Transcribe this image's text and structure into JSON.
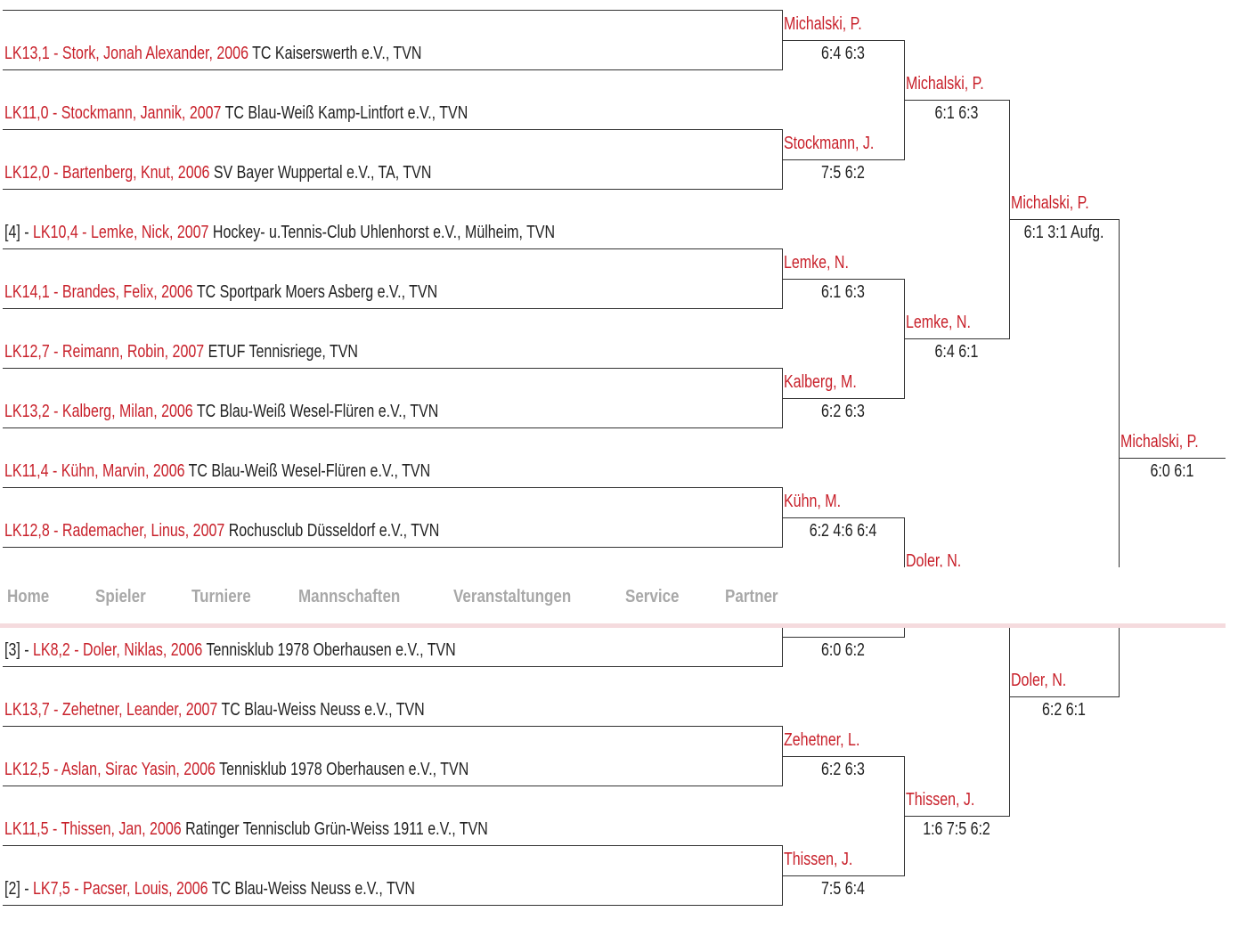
{
  "players": [
    null,
    {
      "name": "LK13,1 - Stork, Jonah Alexander, 2006",
      "club": "TC Kaiserswerth e.V., TVN"
    },
    {
      "name": "LK11,0 - Stockmann, Jannik, 2007",
      "club": "TC Blau-Weiß Kamp-Lintfort e.V., TVN"
    },
    {
      "name": "LK12,0 - Bartenberg, Knut, 2006",
      "club": "SV Bayer Wuppertal e.V., TA, TVN"
    },
    {
      "seed": "[4] -",
      "name": "LK10,4 - Lemke, Nick, 2007",
      "club": "Hockey- u.Tennis-Club Uhlenhorst e.V., Mülheim, TVN"
    },
    {
      "name": "LK14,1 - Brandes, Felix, 2006",
      "club": "TC Sportpark Moers Asberg e.V., TVN"
    },
    {
      "name": "LK12,7 - Reimann, Robin, 2007",
      "club": "ETUF Tennisriege, TVN"
    },
    {
      "name": "LK13,2 - Kalberg, Milan, 2006",
      "club": "TC Blau-Weiß Wesel-Flüren e.V., TVN"
    },
    {
      "name": "LK11,4 - Kühn, Marvin, 2006",
      "club": "TC Blau-Weiß Wesel-Flüren e.V., TVN"
    },
    {
      "name": "LK12,8 - Rademacher, Linus, 2007",
      "club": "Rochusclub Düsseldorf e.V., TVN"
    },
    null,
    {
      "seed": "[3] -",
      "name": "LK8,2 - Doler, Niklas, 2006",
      "club": "Tennisklub 1978 Oberhausen e.V., TVN"
    },
    {
      "name": "LK13,7 - Zehetner, Leander, 2007",
      "club": "TC Blau-Weiss Neuss e.V., TVN"
    },
    {
      "name": "LK12,5 - Aslan, Sirac Yasin, 2006",
      "club": "Tennisklub 1978 Oberhausen e.V., TVN"
    },
    {
      "name": "LK11,5 - Thissen, Jan, 2006",
      "club": "Ratinger Tennisclub Grün-Weiss 1911 e.V., TVN"
    },
    {
      "seed": "[2] -",
      "name": "LK7,5 - Pacser, Louis, 2006",
      "club": "TC Blau-Weiss Neuss e.V., TVN"
    }
  ],
  "rounds": [
    [
      {
        "winner": "Michalski, P.",
        "score": "6:4 6:3"
      },
      {
        "winner": "Stockmann, J.",
        "score": "7:5 6:2"
      },
      {
        "winner": "Lemke, N.",
        "score": "6:1 6:3"
      },
      {
        "winner": "Kalberg, M.",
        "score": "6:2 6:3"
      },
      {
        "winner": "Kühn, M.",
        "score": "6:2 4:6 6:4"
      },
      {
        "winner": null,
        "score": "6:0 6:2"
      },
      {
        "winner": "Zehetner, L.",
        "score": "6:2 6:3"
      },
      {
        "winner": "Thissen, J.",
        "score": "7:5 6:4"
      }
    ],
    [
      {
        "winner": "Michalski, P.",
        "score": "6:1 6:3"
      },
      {
        "winner": "Lemke, N.",
        "score": "6:4 6:1"
      },
      {
        "winner": "Doler, N.",
        "score": null
      },
      {
        "winner": "Thissen, J.",
        "score": "1:6 7:5 6:2"
      }
    ],
    [
      {
        "winner": "Michalski, P.",
        "score": "6:1 3:1 Aufg."
      },
      {
        "winner": "Doler, N.",
        "score": "6:2 6:1"
      }
    ],
    [
      {
        "winner": "Michalski, P.",
        "score": "6:0 6:1"
      }
    ]
  ],
  "nav": [
    "Home",
    "Spieler",
    "Turniere",
    "Mannschaften",
    "Veranstaltungen",
    "Service",
    "Partner"
  ]
}
